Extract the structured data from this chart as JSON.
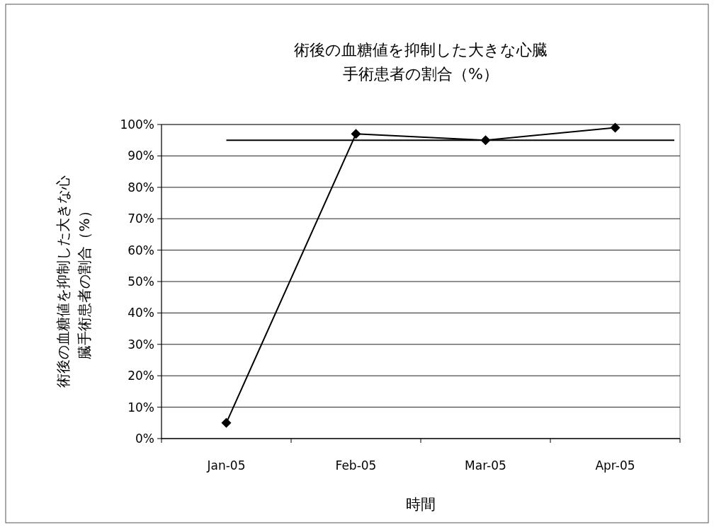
{
  "chart_data": {
    "type": "line",
    "title": "術後の血糖値を抑制した大きな心臓手術患者の割合（%）",
    "xlabel": "時間",
    "ylabel": "術後の血糖値を抑制した大きな心臓手術患者の割合（%）",
    "categories": [
      "Jan-05",
      "Feb-05",
      "Mar-05",
      "Apr-05"
    ],
    "series": [
      {
        "color": "#000000",
        "values": [
          5,
          97,
          95,
          99
        ]
      }
    ],
    "ylim": [
      0,
      100
    ],
    "yticks": [
      {
        "value": 0,
        "label": "0%"
      },
      {
        "value": 10,
        "label": "10%"
      },
      {
        "value": 20,
        "label": "20%"
      },
      {
        "value": 30,
        "label": "30%"
      },
      {
        "value": 40,
        "label": "40%"
      },
      {
        "value": 50,
        "label": "50%"
      },
      {
        "value": 60,
        "label": "60%"
      },
      {
        "value": 70,
        "label": "70%"
      },
      {
        "value": 80,
        "label": "80%"
      },
      {
        "value": 90,
        "label": "90%"
      },
      {
        "value": 100,
        "label": "100%"
      }
    ],
    "ref_lines": [
      {
        "axis": "y",
        "value": 95,
        "color": "#000000"
      }
    ],
    "grid": "y",
    "marker": "diamond",
    "line_style": "solid"
  }
}
